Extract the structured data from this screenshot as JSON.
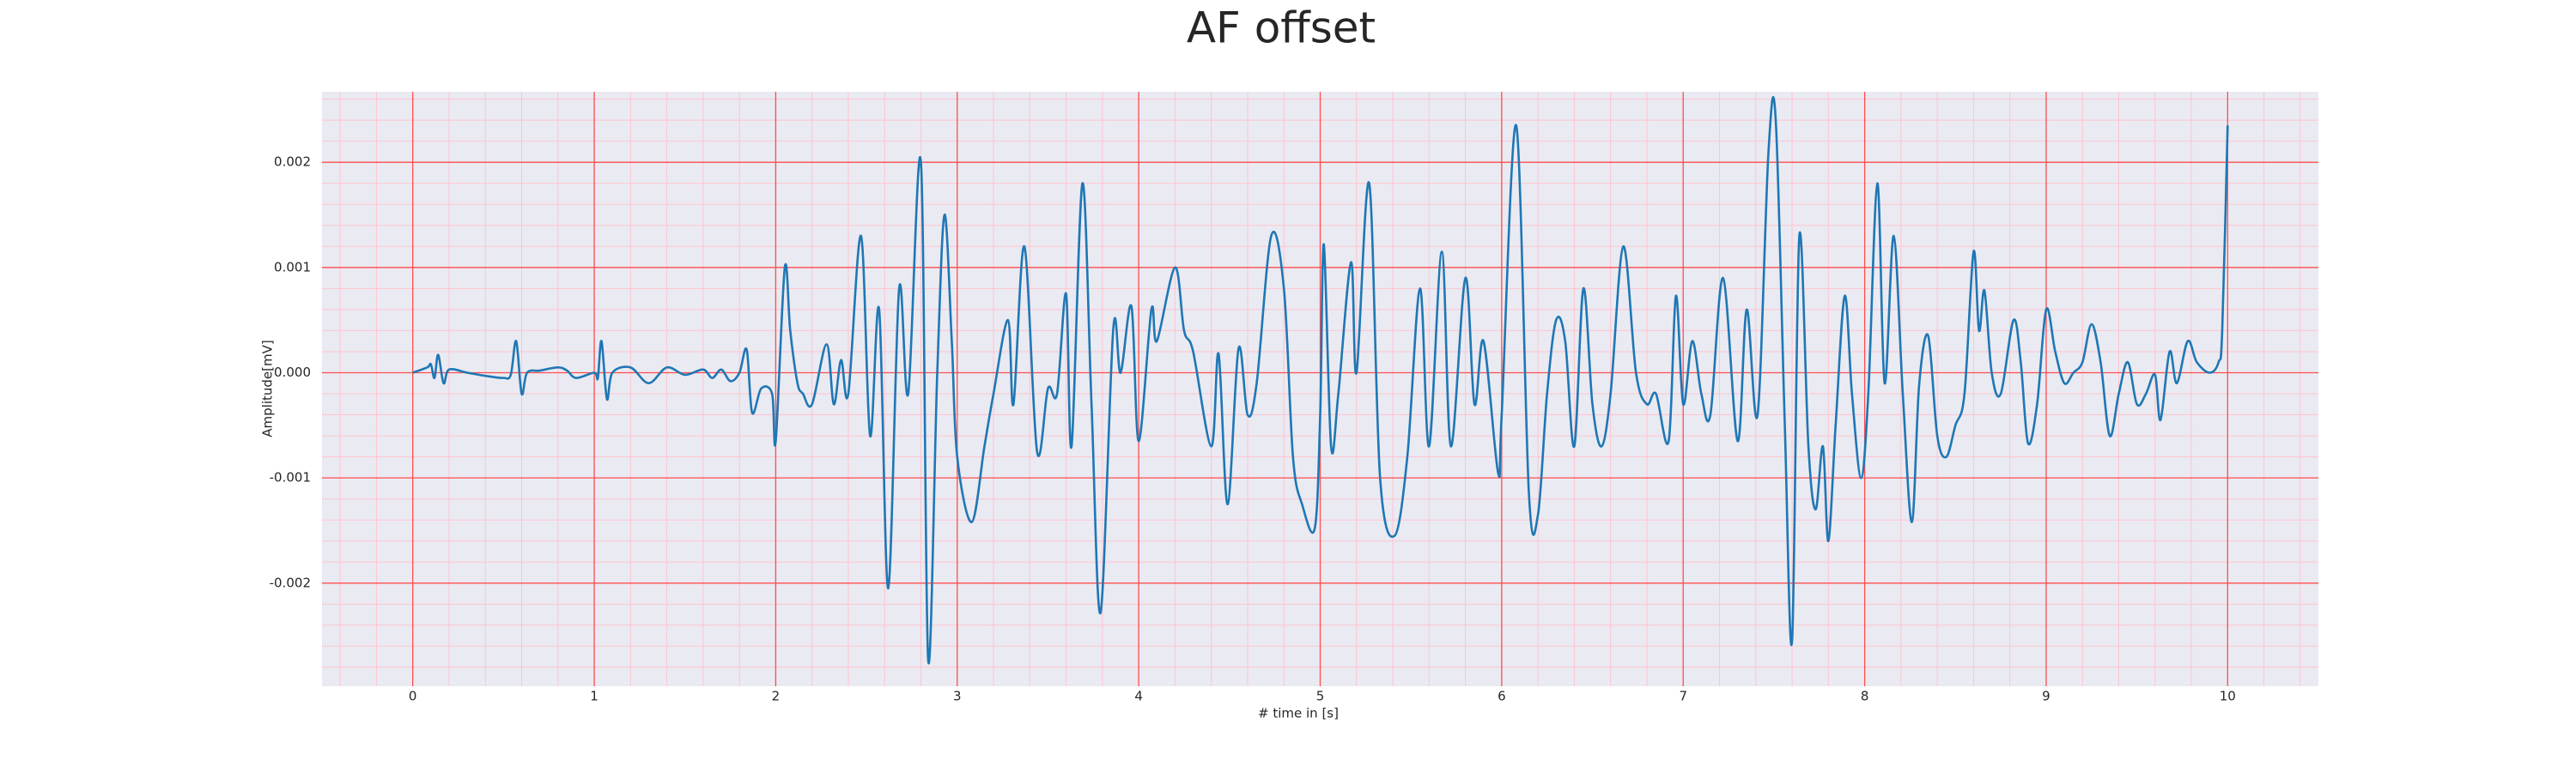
{
  "chart_data": {
    "type": "line",
    "title": "AF offset",
    "xlabel": "# time in [s]",
    "ylabel": "Amplitude[mV]",
    "xlim": [
      -0.5,
      10.5
    ],
    "xticks": [
      0,
      1,
      2,
      3,
      4,
      5,
      6,
      7,
      8,
      9,
      10
    ],
    "ylim": [
      -0.00298,
      0.00267
    ],
    "yticks": [
      -0.002,
      -0.001,
      {
        "value": 0,
        "label": "0.000"
      },
      0.001,
      0.002
    ],
    "grid": true,
    "grid_color": "#ff4d4d",
    "minor_grid_color": "#ffc4cf",
    "minor_divisions": 5,
    "background": "#eaeaf2",
    "series": [
      {
        "name": "AF offset",
        "color": "#1f77b4",
        "x": [
          0,
          0.08,
          0.1,
          0.12,
          0.14,
          0.17,
          0.2,
          0.3,
          0.4,
          0.5,
          0.54,
          0.57,
          0.6,
          0.63,
          0.7,
          0.8,
          0.85,
          0.9,
          1.0,
          1.02,
          1.04,
          1.07,
          1.1,
          1.2,
          1.3,
          1.4,
          1.5,
          1.6,
          1.65,
          1.7,
          1.75,
          1.8,
          1.84,
          1.87,
          1.92,
          1.98,
          2.0,
          2.05,
          2.08,
          2.12,
          2.15,
          2.2,
          2.28,
          2.32,
          2.36,
          2.4,
          2.47,
          2.52,
          2.57,
          2.62,
          2.68,
          2.73,
          2.8,
          2.84,
          2.89,
          2.93,
          2.97,
          3.0,
          3.08,
          3.15,
          3.2,
          3.28,
          3.31,
          3.37,
          3.44,
          3.5,
          3.55,
          3.6,
          3.63,
          3.69,
          3.74,
          3.79,
          3.86,
          3.9,
          3.96,
          4.0,
          4.07,
          4.1,
          4.2,
          4.25,
          4.3,
          4.4,
          4.44,
          4.49,
          4.55,
          4.6,
          4.65,
          4.73,
          4.8,
          4.85,
          4.9,
          4.97,
          5.0,
          5.02,
          5.06,
          5.1,
          5.17,
          5.2,
          5.27,
          5.33,
          5.41,
          5.48,
          5.55,
          5.6,
          5.67,
          5.72,
          5.8,
          5.85,
          5.9,
          5.98,
          6.0,
          6.08,
          6.15,
          6.2,
          6.25,
          6.3,
          6.35,
          6.4,
          6.45,
          6.5,
          6.55,
          6.6,
          6.67,
          6.74,
          6.8,
          6.85,
          6.92,
          6.96,
          7.0,
          7.05,
          7.1,
          7.15,
          7.22,
          7.3,
          7.35,
          7.41,
          7.47,
          7.51,
          7.56,
          7.6,
          7.64,
          7.69,
          7.73,
          7.77,
          7.8,
          7.84,
          7.89,
          7.93,
          7.98,
          8.02,
          8.07,
          8.11,
          8.16,
          8.21,
          8.26,
          8.3,
          8.35,
          8.4,
          8.45,
          8.5,
          8.55,
          8.6,
          8.63,
          8.66,
          8.7,
          8.75,
          8.82,
          8.86,
          8.9,
          8.95,
          9.0,
          9.05,
          9.1,
          9.15,
          9.2,
          9.25,
          9.3,
          9.35,
          9.4,
          9.45,
          9.5,
          9.55,
          9.6,
          9.63,
          9.68,
          9.72,
          9.78,
          9.83,
          9.9,
          9.95,
          9.97,
          10.0
        ],
        "values": [
          0,
          5e-05,
          8e-05,
          -5e-05,
          0.00017,
          -0.0001,
          3e-05,
          0,
          -3e-05,
          -5e-05,
          -2e-05,
          0.0003,
          -0.0002,
          0,
          2e-05,
          5e-05,
          2e-05,
          -5e-05,
          0,
          -5e-05,
          0.0003,
          -0.00025,
          0,
          5e-05,
          -0.0001,
          5e-05,
          -2e-05,
          3e-05,
          -5e-05,
          3e-05,
          -8e-05,
          0,
          0.00022,
          -0.00038,
          -0.00015,
          -0.0002,
          -0.00065,
          0.001,
          0.0004,
          -0.0001,
          -0.0002,
          -0.0003,
          0.00027,
          -0.0003,
          0.00012,
          -0.0002,
          0.0013,
          -0.0006,
          0.0006,
          -0.00205,
          0.0008,
          -0.0002,
          0.002,
          -0.00273,
          0,
          0.0015,
          0.0003,
          -0.0008,
          -0.00142,
          -0.0007,
          -0.0002,
          0.0005,
          -0.0003,
          0.0012,
          -0.00075,
          -0.00015,
          -0.0002,
          0.00075,
          -0.0007,
          0.0018,
          -0.0003,
          -0.00228,
          0.00042,
          0,
          0.00063,
          -0.00065,
          0.0006,
          0.0003,
          0.001,
          0.0004,
          0.0002,
          -0.0007,
          0.00018,
          -0.00125,
          0.00023,
          -0.0004,
          -0.0001,
          0.0013,
          0.0008,
          -0.0008,
          -0.00125,
          -0.00148,
          -0.0004,
          0.00122,
          -0.0007,
          -0.0002,
          0.00105,
          0,
          0.0018,
          -0.001,
          -0.00155,
          -0.0008,
          0.0008,
          -0.0007,
          0.00115,
          -0.0007,
          0.0009,
          -0.0003,
          0.0003,
          -0.00095,
          -0.0004,
          0.00235,
          -0.00115,
          -0.00135,
          -0.0002,
          0.0005,
          0.0003,
          -0.0007,
          0.0008,
          -0.0003,
          -0.0007,
          -0.0002,
          0.0012,
          0,
          -0.0003,
          -0.0002,
          -0.00065,
          0.00073,
          -0.0003,
          0.0003,
          -0.0002,
          -0.0004,
          0.0009,
          -0.00065,
          0.0006,
          -0.0004,
          0.0021,
          0.0024,
          -0.0005,
          -0.00255,
          0.0013,
          -0.0007,
          -0.0013,
          -0.0007,
          -0.0016,
          -0.0005,
          0.00073,
          -0.0002,
          -0.001,
          -0.0002,
          0.0018,
          -0.0001,
          0.0013,
          -0.0002,
          -0.00142,
          -0.00012,
          0.00035,
          -0.0006,
          -0.0008,
          -0.0005,
          -0.0002,
          0.00115,
          0.0004,
          0.00078,
          0,
          -0.0002,
          0.0005,
          0.0001,
          -0.00067,
          -0.0003,
          0.0006,
          0.0002,
          -0.0001,
          0,
          0.0001,
          0.00046,
          0.0001,
          -0.0006,
          -0.0002,
          0.0001,
          -0.0003,
          -0.0002,
          -2e-05,
          -0.00045,
          0.0002,
          -0.0001,
          0.0003,
          0.0001,
          0,
          0.0001,
          0.0004,
          0.00235
        ]
      }
    ]
  }
}
